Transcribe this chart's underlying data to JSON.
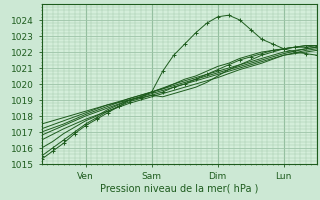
{
  "title": "",
  "xlabel": "Pression niveau de la mer( hPa )",
  "ylim": [
    1015,
    1025
  ],
  "xlim": [
    0,
    100
  ],
  "yticks": [
    1015,
    1016,
    1017,
    1018,
    1019,
    1020,
    1021,
    1022,
    1023,
    1024
  ],
  "xtick_positions": [
    16,
    40,
    64,
    88
  ],
  "xtick_labels": [
    "Ven",
    "Sam",
    "Dim",
    "Lun"
  ],
  "background_color": "#cce8d4",
  "plot_bg_color": "#d4eeda",
  "grid_color": "#9ec4a8",
  "line_color": "#1e5c1e",
  "lines": [
    {
      "x": [
        0,
        4,
        8,
        12,
        16,
        20,
        24,
        28,
        32,
        36,
        40,
        44,
        48,
        52,
        56,
        60,
        64,
        68,
        72,
        76,
        80,
        84,
        88,
        92,
        96,
        100
      ],
      "y": [
        1015.3,
        1015.8,
        1016.3,
        1016.9,
        1017.4,
        1017.8,
        1018.2,
        1018.6,
        1019.0,
        1019.2,
        1019.5,
        1020.8,
        1021.8,
        1022.5,
        1023.2,
        1023.8,
        1024.2,
        1024.3,
        1024.0,
        1023.4,
        1022.8,
        1022.5,
        1022.2,
        1022.0,
        1021.9,
        1021.8
      ],
      "marker": "+",
      "markersize": 2.5
    },
    {
      "x": [
        0,
        8,
        16,
        24,
        32,
        40,
        48,
        56,
        64,
        72,
        80,
        88,
        96,
        100
      ],
      "y": [
        1016.5,
        1017.2,
        1017.8,
        1018.3,
        1018.8,
        1019.2,
        1019.6,
        1020.0,
        1020.4,
        1020.9,
        1021.3,
        1021.8,
        1022.0,
        1022.1
      ],
      "marker": null,
      "markersize": 0
    },
    {
      "x": [
        0,
        8,
        16,
        24,
        32,
        40,
        48,
        56,
        64,
        72,
        80,
        88,
        96,
        100
      ],
      "y": [
        1016.8,
        1017.4,
        1018.0,
        1018.5,
        1019.0,
        1019.4,
        1019.8,
        1020.2,
        1020.6,
        1021.0,
        1021.4,
        1021.8,
        1022.1,
        1022.2
      ],
      "marker": null,
      "markersize": 0
    },
    {
      "x": [
        0,
        8,
        16,
        24,
        32,
        40,
        48,
        56,
        64,
        72,
        80,
        88,
        96,
        100
      ],
      "y": [
        1017.0,
        1017.5,
        1018.1,
        1018.6,
        1019.1,
        1019.5,
        1019.9,
        1020.3,
        1020.7,
        1021.1,
        1021.5,
        1021.9,
        1022.2,
        1022.3
      ],
      "marker": null,
      "markersize": 0
    },
    {
      "x": [
        0,
        8,
        16,
        24,
        32,
        40,
        48,
        56,
        64,
        72,
        80,
        88,
        96,
        100
      ],
      "y": [
        1017.2,
        1017.7,
        1018.2,
        1018.7,
        1019.1,
        1019.5,
        1020.0,
        1020.4,
        1020.8,
        1021.2,
        1021.6,
        1022.0,
        1022.2,
        1022.3
      ],
      "marker": null,
      "markersize": 0
    },
    {
      "x": [
        0,
        8,
        16,
        24,
        32,
        40,
        44,
        48,
        52,
        56,
        60,
        64,
        68,
        72,
        76,
        80,
        84,
        88,
        92,
        96,
        100
      ],
      "y": [
        1017.5,
        1017.9,
        1018.3,
        1018.7,
        1019.0,
        1019.3,
        1019.2,
        1019.4,
        1019.6,
        1019.8,
        1020.1,
        1020.5,
        1020.9,
        1021.2,
        1021.5,
        1021.8,
        1022.0,
        1022.2,
        1022.3,
        1022.4,
        1022.4
      ],
      "marker": null,
      "markersize": 0
    },
    {
      "x": [
        0,
        4,
        8,
        12,
        16,
        20,
        24,
        28,
        32,
        36,
        40,
        44,
        48,
        52,
        56,
        60,
        64,
        68,
        72,
        76,
        80,
        84,
        88,
        92,
        96,
        100
      ],
      "y": [
        1015.5,
        1016.0,
        1016.5,
        1017.0,
        1017.5,
        1017.9,
        1018.3,
        1018.6,
        1018.9,
        1019.1,
        1019.3,
        1019.5,
        1019.8,
        1020.0,
        1020.3,
        1020.6,
        1020.9,
        1021.2,
        1021.5,
        1021.7,
        1021.9,
        1022.1,
        1022.2,
        1022.3,
        1022.3,
        1022.4
      ],
      "marker": "+",
      "markersize": 2.5
    },
    {
      "x": [
        0,
        4,
        8,
        12,
        16,
        20,
        24,
        28,
        32,
        36,
        40,
        44,
        48,
        52,
        56,
        60,
        64,
        68,
        72,
        76,
        80,
        84,
        88,
        92,
        96,
        100
      ],
      "y": [
        1016.0,
        1016.4,
        1016.9,
        1017.3,
        1017.7,
        1018.0,
        1018.4,
        1018.7,
        1019.0,
        1019.2,
        1019.5,
        1019.7,
        1020.0,
        1020.3,
        1020.5,
        1020.8,
        1021.1,
        1021.3,
        1021.6,
        1021.8,
        1022.0,
        1022.1,
        1022.2,
        1022.3,
        1022.4,
        1022.4
      ],
      "marker": null,
      "markersize": 0
    }
  ]
}
